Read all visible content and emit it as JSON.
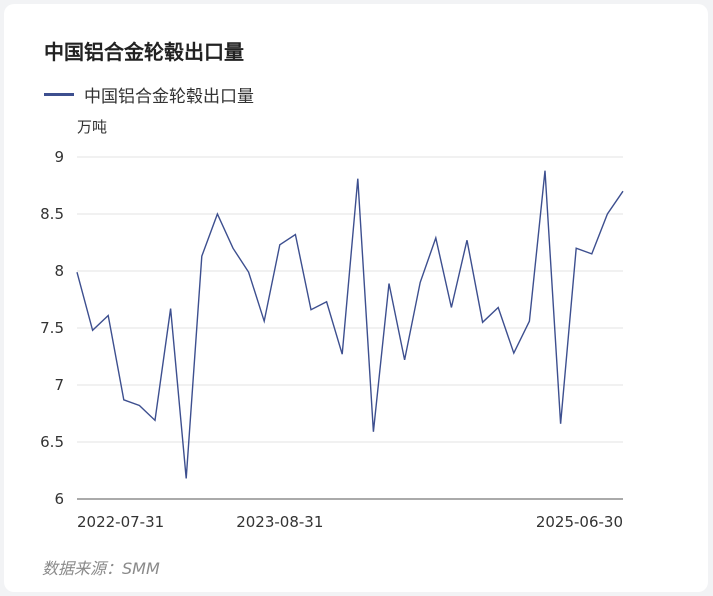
{
  "title": "中国铝合金轮毂出口量",
  "legend": {
    "series_name": "中国铝合金轮毂出口量",
    "color": "#3d4f8f"
  },
  "source": "数据来源：SMM",
  "chart_data": {
    "type": "line",
    "title": "中国铝合金轮毂出口量",
    "ylabel": "万吨",
    "xlabel": "",
    "ylim": [
      6,
      9
    ],
    "yticks": [
      "6",
      "6.5",
      "7",
      "7.5",
      "8",
      "8.5",
      "9"
    ],
    "xtick_labels": [
      {
        "label": "2022-07-31",
        "index": 0
      },
      {
        "label": "2023-08-31",
        "index": 13
      },
      {
        "label": "2025-06-30",
        "index": 35
      }
    ],
    "grid": true,
    "legend_position": "top-left",
    "series": [
      {
        "name": "中国铝合金轮毂出口量",
        "color": "#3d4f8f",
        "values": [
          7.99,
          7.48,
          7.61,
          6.87,
          6.82,
          6.69,
          7.67,
          6.18,
          8.13,
          8.5,
          8.2,
          7.99,
          7.56,
          8.23,
          8.32,
          7.66,
          7.73,
          7.27,
          8.81,
          6.59,
          7.89,
          7.22,
          7.9,
          8.29,
          7.68,
          8.27,
          7.55,
          7.68,
          7.28,
          7.56,
          8.88,
          6.66,
          8.2,
          8.15,
          8.5,
          8.7
        ]
      }
    ]
  }
}
